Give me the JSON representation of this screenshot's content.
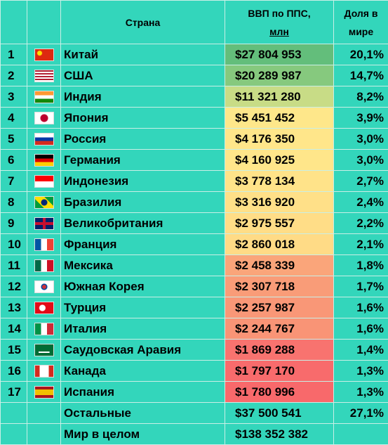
{
  "header": {
    "country": "Страна",
    "gdp": [
      "ВВП по ППС,",
      "млн"
    ],
    "share": [
      "Доля в",
      "мире"
    ]
  },
  "rows": [
    {
      "rank": "1",
      "country": "Китай",
      "gdp": "$27 804 953",
      "share": "20,1%",
      "color": "#63be7b"
    },
    {
      "rank": "2",
      "country": "США",
      "gdp": "$20 289 987",
      "share": "14,7%",
      "color": "#86c97e"
    },
    {
      "rank": "3",
      "country": "Индия",
      "gdp": "$11 321 280",
      "share": "8,2%",
      "color": "#c8dc86"
    },
    {
      "rank": "4",
      "country": "Япония",
      "gdp": "$5 451 452",
      "share": "3,9%",
      "color": "#fee78a"
    },
    {
      "rank": "5",
      "country": "Россия",
      "gdp": "$4 176 350",
      "share": "3,0%",
      "color": "#ffe68a"
    },
    {
      "rank": "6",
      "country": "Германия",
      "gdp": "$4 160 925",
      "share": "3,0%",
      "color": "#ffe68a"
    },
    {
      "rank": "7",
      "country": "Индонезия",
      "gdp": "$3 778 134",
      "share": "2,7%",
      "color": "#ffe389"
    },
    {
      "rank": "8",
      "country": "Бразилия",
      "gdp": "$3 316 920",
      "share": "2,4%",
      "color": "#ffe088"
    },
    {
      "rank": "9",
      "country": "Великобритания",
      "gdp": "$2 975 557",
      "share": "2,2%",
      "color": "#ffdd87"
    },
    {
      "rank": "10",
      "country": "Франция",
      "gdp": "$2 860 018",
      "share": "2,1%",
      "color": "#ffdb86"
    },
    {
      "rank": "11",
      "country": "Мексика",
      "gdp": "$2 458 339",
      "share": "1,8%",
      "color": "#faa57a"
    },
    {
      "rank": "12",
      "country": "Южная Корея",
      "gdp": "$2 307 718",
      "share": "1,7%",
      "color": "#f99c78"
    },
    {
      "rank": "13",
      "country": "Турция",
      "gdp": "$2 257 987",
      "share": "1,6%",
      "color": "#f99777"
    },
    {
      "rank": "14",
      "country": "Италия",
      "gdp": "$2 244 767",
      "share": "1,6%",
      "color": "#f99476"
    },
    {
      "rank": "15",
      "country": "Саудовская Аравия",
      "gdp": "$1 869 288",
      "share": "1,4%",
      "color": "#f8736f"
    },
    {
      "rank": "16",
      "country": "Канада",
      "gdp": "$1 797 170",
      "share": "1,3%",
      "color": "#f86b6c"
    },
    {
      "rank": "17",
      "country": "Испания",
      "gdp": "$1 780 996",
      "share": "1,3%",
      "color": "#f8696b"
    }
  ],
  "totals": [
    {
      "country": "Остальные",
      "gdp": "$37 500 541",
      "share": "27,1%"
    },
    {
      "country": "Мир в целом",
      "gdp": "$138 352 382"
    }
  ]
}
